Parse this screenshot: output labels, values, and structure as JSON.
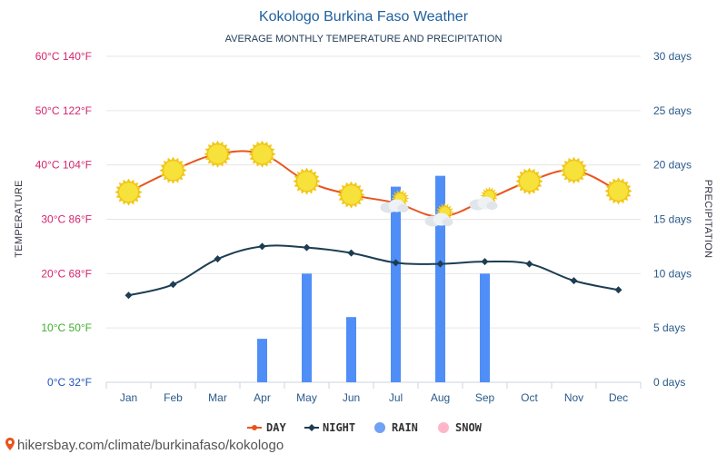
{
  "page": {
    "title": "Kokologo Burkina Faso Weather",
    "subtitle": "AVERAGE MONTHLY TEMPERATURE AND PRECIPITATION",
    "left_axis_title": "TEMPERATURE",
    "right_axis_title": "PRECIPITATION",
    "watermark": "hikersbay.com/climate/burkinafaso/kokologo"
  },
  "legend": {
    "day": "DAY",
    "night": "NIGHT",
    "rain": "RAIN",
    "snow": "SNOW"
  },
  "colors": {
    "day_line": "#e8541e",
    "night_line": "#1c3d52",
    "rain_bar": "#4f8ef7",
    "snow": "#ffb6c8",
    "grid": "#e6e6e6",
    "sun": "#f7e13b"
  },
  "chart_data": {
    "type": "line",
    "categories": [
      "Jan",
      "Feb",
      "Mar",
      "Apr",
      "May",
      "Jun",
      "Jul",
      "Aug",
      "Sep",
      "Oct",
      "Nov",
      "Dec"
    ],
    "series": [
      {
        "name": "DAY",
        "unit": "°C",
        "values": [
          35,
          39,
          42,
          42,
          37,
          34.5,
          33,
          30.5,
          33.5,
          37,
          39,
          35.2
        ]
      },
      {
        "name": "NIGHT",
        "unit": "°C",
        "values": [
          16,
          18,
          22.7,
          25,
          24.8,
          23.8,
          22,
          21.8,
          22.2,
          21.8,
          18.7,
          17
        ]
      },
      {
        "name": "RAIN",
        "unit": "days",
        "type": "bar",
        "values": [
          0,
          0,
          0,
          4,
          10,
          6,
          18,
          19,
          10,
          0,
          0,
          0
        ]
      }
    ],
    "weather_icons": [
      "sun",
      "sun",
      "sun",
      "sun",
      "sun",
      "sun",
      "sun-cloud",
      "sun-cloud",
      "sun-cloud",
      "sun",
      "sun",
      "sun"
    ],
    "left_ticks": [
      {
        "label": "60°C 140°F",
        "value": 60,
        "color": "#d6246e"
      },
      {
        "label": "50°C 122°F",
        "value": 50,
        "color": "#d6246e"
      },
      {
        "label": "40°C 104°F",
        "value": 40,
        "color": "#d6246e"
      },
      {
        "label": "30°C 86°F",
        "value": 30,
        "color": "#d6246e"
      },
      {
        "label": "20°C 68°F",
        "value": 20,
        "color": "#d6246e"
      },
      {
        "label": "10°C 50°F",
        "value": 10,
        "color": "#3fae2a"
      },
      {
        "label": "0°C 32°F",
        "value": 0,
        "color": "#2255bb"
      }
    ],
    "right_ticks": [
      {
        "label": "30 days",
        "value": 30
      },
      {
        "label": "25 days",
        "value": 25
      },
      {
        "label": "20 days",
        "value": 20
      },
      {
        "label": "15 days",
        "value": 15
      },
      {
        "label": "10 days",
        "value": 10
      },
      {
        "label": "5 days",
        "value": 5
      },
      {
        "label": "0 days",
        "value": 0
      }
    ],
    "ylim_temperature": [
      0,
      60
    ],
    "ylim_precipitation": [
      0,
      30
    ],
    "grid": true,
    "legend_position": "bottom"
  }
}
